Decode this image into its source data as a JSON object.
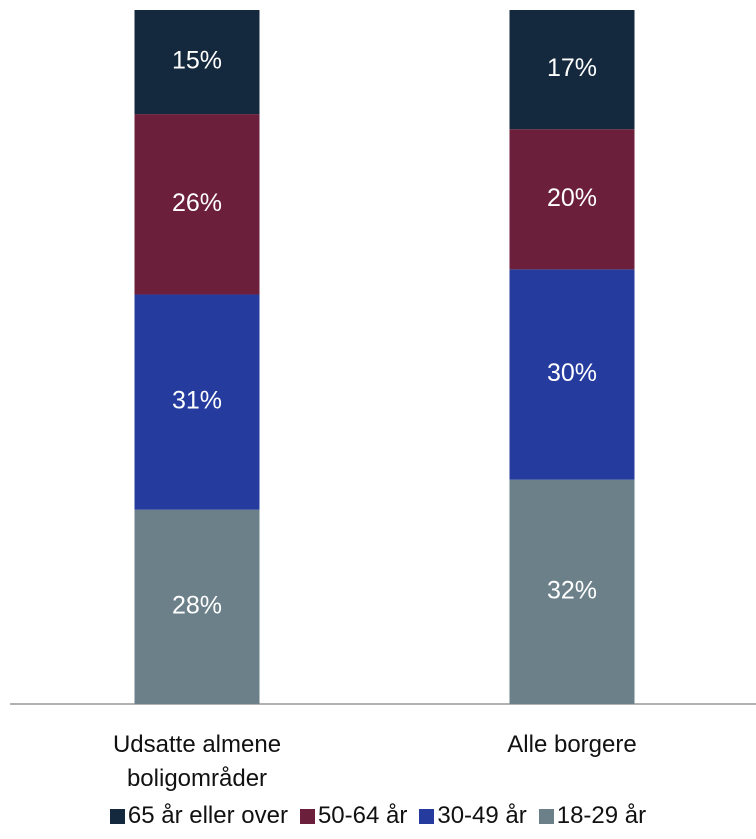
{
  "chart_data": {
    "type": "stacked_bar",
    "categories": [
      "Udsatte almene boligområder",
      "Alle borgere"
    ],
    "series": [
      {
        "name": "65 år eller over",
        "color": "#14293d",
        "values": [
          15,
          17
        ],
        "value_labels": [
          "15%",
          "17%"
        ]
      },
      {
        "name": "50-64 år",
        "color": "#6b1f3b",
        "values": [
          26,
          20
        ],
        "value_labels": [
          "26%",
          "20%"
        ]
      },
      {
        "name": "30-49 år",
        "color": "#253c9e",
        "values": [
          31,
          30
        ],
        "value_labels": [
          "31%",
          "30%"
        ]
      },
      {
        "name": "18-29 år",
        "color": "#6b8089",
        "values": [
          28,
          32
        ],
        "value_labels": [
          "28%",
          "32%"
        ]
      }
    ]
  }
}
